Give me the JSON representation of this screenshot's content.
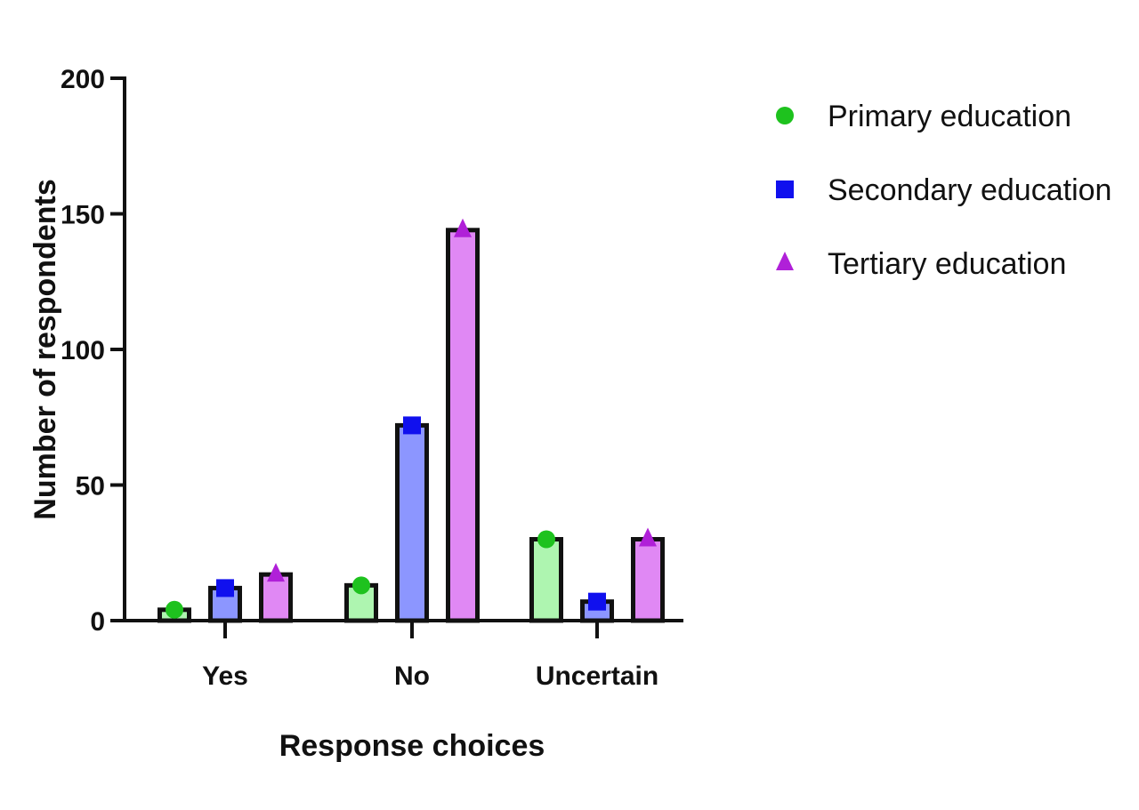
{
  "chart_data": {
    "type": "bar",
    "categories": [
      "Yes",
      "No",
      "Uncertain"
    ],
    "series": [
      {
        "name": "Primary education",
        "values": [
          4,
          13,
          30
        ],
        "fill": "#aef5b0",
        "marker": "circle",
        "marker_color": "#1ec21e"
      },
      {
        "name": "Secondary education",
        "values": [
          12,
          72,
          7
        ],
        "fill": "#8c96ff",
        "marker": "square",
        "marker_color": "#1010ee"
      },
      {
        "name": "Tertiary education",
        "values": [
          17,
          144,
          30
        ],
        "fill": "#e088f4",
        "marker": "triangle",
        "marker_color": "#b020d8"
      }
    ],
    "xlabel": "Response choices",
    "ylabel": "Number of respondents",
    "ylim": [
      0,
      200
    ],
    "yticks": [
      0,
      50,
      100,
      150,
      200
    ],
    "legend_position": "top-right",
    "grid": false
  }
}
